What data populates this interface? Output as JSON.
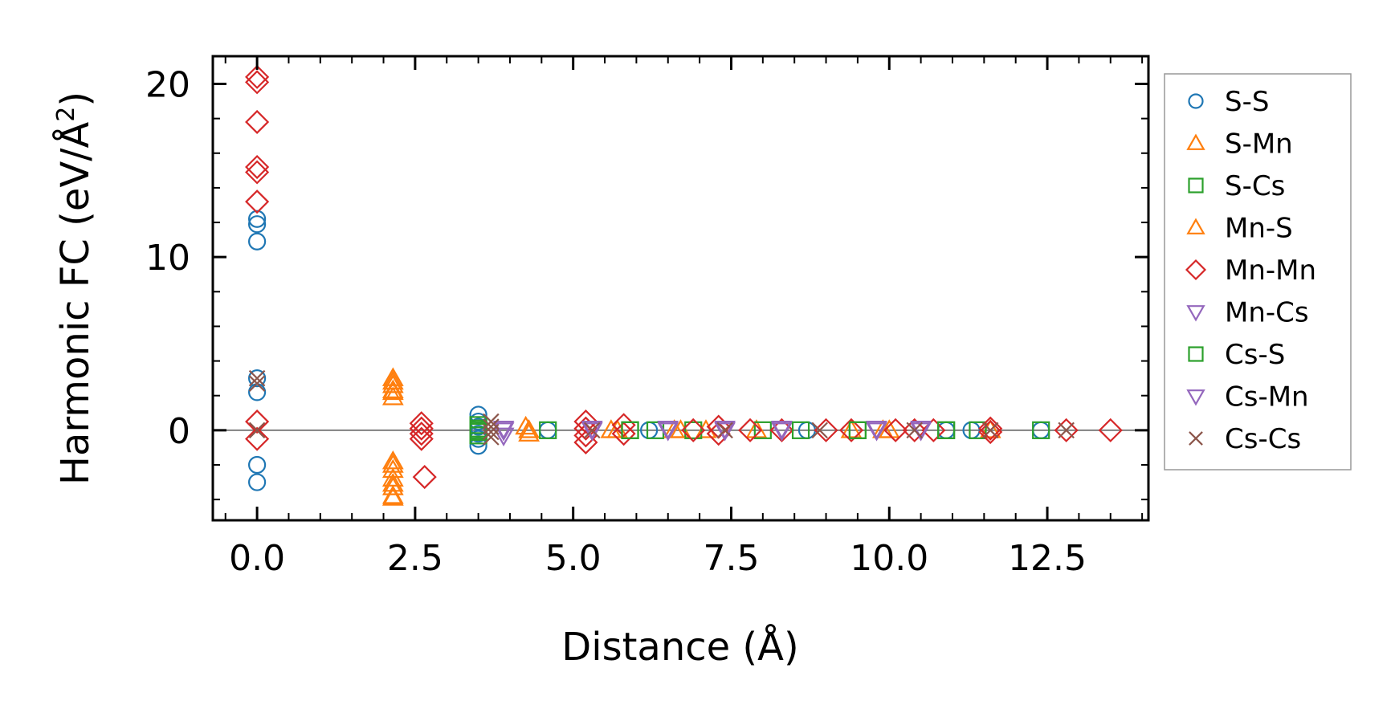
{
  "chart_data": {
    "type": "scatter",
    "title": "",
    "xlabel": "Distance (Å)",
    "ylabel": "Harmonic FC (eV/Å",
    "ylabel_sup": "2",
    "ylabel_end": ")",
    "xlim": [
      -0.7,
      14.1
    ],
    "ylim": [
      -5.2,
      21.6
    ],
    "x_ticks": [
      0.0,
      2.5,
      5.0,
      7.5,
      10.0,
      12.5
    ],
    "x_tick_labels": [
      "0.0",
      "2.5",
      "5.0",
      "7.5",
      "10.0",
      "12.5"
    ],
    "y_ticks": [
      0,
      10,
      20
    ],
    "y_tick_labels": [
      "0",
      "10",
      "20"
    ],
    "x_minor_step": 0.5,
    "y_minor_step": 2,
    "zero_line": true,
    "grid": false,
    "legend_position": "outside-right",
    "series": [
      {
        "name": "S-S",
        "marker": "circle",
        "color": "#1f77b4",
        "points": [
          [
            0,
            12.2
          ],
          [
            0,
            11.9
          ],
          [
            0,
            10.9
          ],
          [
            0,
            3.0
          ],
          [
            0,
            2.2
          ],
          [
            0,
            -2.0
          ],
          [
            0,
            -3.0
          ],
          [
            3.5,
            0.9
          ],
          [
            3.5,
            0.5
          ],
          [
            3.5,
            0.2
          ],
          [
            3.5,
            -0.2
          ],
          [
            3.5,
            -0.5
          ],
          [
            3.5,
            -0.9
          ],
          [
            4.6,
            0
          ],
          [
            6.2,
            0
          ],
          [
            8.7,
            0
          ],
          [
            10.9,
            0
          ],
          [
            11.3,
            0
          ],
          [
            12.4,
            0
          ]
        ]
      },
      {
        "name": "S-Mn",
        "marker": "triangle-up",
        "color": "#ff7f0e",
        "points": [
          [
            2.15,
            3.0
          ],
          [
            2.15,
            2.6
          ],
          [
            2.15,
            2.2
          ],
          [
            2.15,
            1.9
          ],
          [
            2.15,
            -1.8
          ],
          [
            2.15,
            -2.3
          ],
          [
            2.15,
            -2.8
          ],
          [
            2.15,
            -3.3
          ],
          [
            2.15,
            -3.8
          ],
          [
            4.25,
            0.2
          ],
          [
            4.3,
            0
          ],
          [
            5.6,
            0
          ],
          [
            6.7,
            0
          ],
          [
            7.1,
            0
          ],
          [
            7.9,
            0
          ],
          [
            9.4,
            0
          ],
          [
            10.0,
            0
          ],
          [
            11.6,
            0
          ]
        ]
      },
      {
        "name": "S-Cs",
        "marker": "square",
        "color": "#2ca02c",
        "points": [
          [
            3.5,
            0.3
          ],
          [
            3.5,
            0
          ],
          [
            3.5,
            -0.3
          ],
          [
            4.6,
            0
          ],
          [
            5.9,
            0
          ],
          [
            6.3,
            0
          ],
          [
            6.9,
            0
          ],
          [
            8.0,
            0
          ],
          [
            9.5,
            0
          ],
          [
            10.9,
            0
          ],
          [
            11.4,
            0
          ],
          [
            12.4,
            0
          ]
        ]
      },
      {
        "name": "Mn-S",
        "marker": "triangle-up",
        "color": "#ff7f0e",
        "points": [
          [
            2.15,
            2.8
          ],
          [
            2.15,
            2.3
          ],
          [
            2.15,
            -2.0
          ],
          [
            2.15,
            -3.1
          ],
          [
            2.15,
            -3.9
          ],
          [
            4.3,
            -0.2
          ],
          [
            5.7,
            0
          ],
          [
            6.6,
            0
          ],
          [
            9.9,
            0
          ]
        ]
      },
      {
        "name": "Mn-Mn",
        "marker": "diamond",
        "color": "#d62728",
        "points": [
          [
            0,
            20.4
          ],
          [
            0,
            20.1
          ],
          [
            0,
            17.8
          ],
          [
            0,
            15.2
          ],
          [
            0,
            14.9
          ],
          [
            0,
            13.2
          ],
          [
            0,
            0.5
          ],
          [
            0,
            -0.5
          ],
          [
            2.6,
            0.4
          ],
          [
            2.6,
            0.1
          ],
          [
            2.6,
            -0.2
          ],
          [
            2.6,
            -0.5
          ],
          [
            2.65,
            -2.7
          ],
          [
            5.2,
            0.5
          ],
          [
            5.2,
            0.1
          ],
          [
            5.2,
            -0.3
          ],
          [
            5.2,
            -0.7
          ],
          [
            5.8,
            0.3
          ],
          [
            5.8,
            -0.2
          ],
          [
            6.9,
            0
          ],
          [
            7.3,
            0.2
          ],
          [
            7.3,
            -0.2
          ],
          [
            7.8,
            0
          ],
          [
            8.3,
            0
          ],
          [
            9.0,
            0
          ],
          [
            9.4,
            0
          ],
          [
            10.1,
            0
          ],
          [
            10.4,
            0
          ],
          [
            10.7,
            0
          ],
          [
            11.6,
            0.1
          ],
          [
            11.6,
            -0.1
          ],
          [
            12.8,
            0
          ],
          [
            13.5,
            0
          ]
        ]
      },
      {
        "name": "Mn-Cs",
        "marker": "triangle-down",
        "color": "#9467bd",
        "points": [
          [
            3.9,
            0.1
          ],
          [
            3.9,
            -0.3
          ],
          [
            5.3,
            0
          ],
          [
            6.5,
            0
          ],
          [
            7.4,
            0
          ],
          [
            8.3,
            0
          ],
          [
            9.8,
            0
          ],
          [
            10.5,
            0
          ]
        ]
      },
      {
        "name": "Cs-S",
        "marker": "square",
        "color": "#2ca02c",
        "points": [
          [
            3.5,
            0.1
          ],
          [
            3.5,
            -0.1
          ],
          [
            5.9,
            0
          ],
          [
            8.6,
            0
          ],
          [
            9.5,
            0
          ],
          [
            10.9,
            0
          ]
        ]
      },
      {
        "name": "Cs-Mn",
        "marker": "triangle-down",
        "color": "#9467bd",
        "points": [
          [
            3.9,
            0
          ],
          [
            5.3,
            0.1
          ],
          [
            6.5,
            0.1
          ],
          [
            7.4,
            0.1
          ],
          [
            8.3,
            0.1
          ],
          [
            9.8,
            0.1
          ],
          [
            10.5,
            0.1
          ]
        ]
      },
      {
        "name": "Cs-Cs",
        "marker": "x",
        "color": "#8c564b",
        "points": [
          [
            0,
            3.0
          ],
          [
            0,
            2.7
          ],
          [
            0,
            0
          ],
          [
            3.7,
            0.5
          ],
          [
            3.7,
            0.2
          ],
          [
            3.7,
            -0.1
          ],
          [
            3.7,
            -0.4
          ],
          [
            5.3,
            0
          ],
          [
            7.4,
            0
          ],
          [
            8.9,
            0
          ],
          [
            10.4,
            0
          ],
          [
            11.6,
            0
          ],
          [
            12.8,
            0
          ]
        ]
      }
    ]
  }
}
